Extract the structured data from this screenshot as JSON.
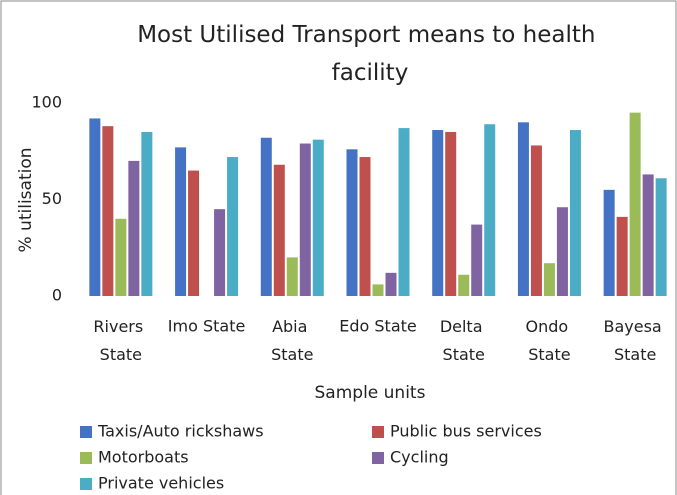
{
  "chart_data": {
    "type": "bar",
    "title": "Most Utilised Transport means to health facility",
    "x_label": "Sample units",
    "y_label": "% utilisation",
    "categories": [
      "Rivers State",
      "Imo State",
      "Abia State",
      "Edo State",
      "Delta State",
      "Ondo State",
      "Bayesa State"
    ],
    "series": [
      {
        "name": "Taxis/Auto rickshaws",
        "color": "#4472c4",
        "values": [
          92,
          77,
          82,
          76,
          86,
          90,
          55
        ]
      },
      {
        "name": "Public bus services",
        "color": "#c0504d",
        "values": [
          88,
          65,
          68,
          72,
          85,
          78,
          41
        ]
      },
      {
        "name": "Motorboats",
        "color": "#9bbb59",
        "values": [
          40,
          0,
          20,
          6,
          11,
          17,
          95
        ]
      },
      {
        "name": "Cycling",
        "color": "#8064a2",
        "values": [
          70,
          45,
          79,
          12,
          37,
          46,
          63
        ]
      },
      {
        "name": "Private vehicles",
        "color": "#4bacc6",
        "values": [
          85,
          72,
          81,
          87,
          89,
          86,
          61
        ]
      }
    ],
    "ylim": [
      0,
      100
    ],
    "yticks": [
      0,
      50,
      100
    ],
    "grid": false
  }
}
